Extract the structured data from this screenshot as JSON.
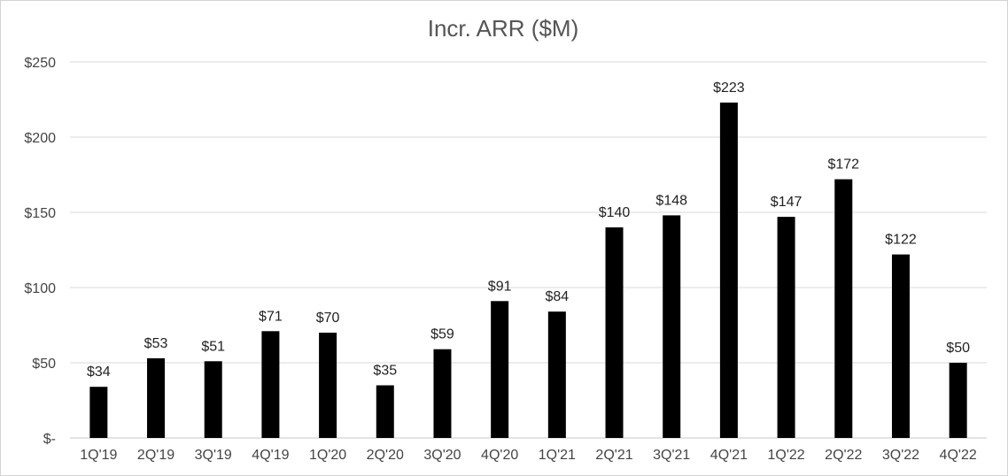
{
  "chart_data": {
    "type": "bar",
    "title": "Incr. ARR ($M)",
    "xlabel": "",
    "ylabel": "",
    "categories": [
      "1Q'19",
      "2Q'19",
      "3Q'19",
      "4Q'19",
      "1Q'20",
      "2Q'20",
      "3Q'20",
      "4Q'20",
      "1Q'21",
      "2Q'21",
      "3Q'21",
      "4Q'21",
      "1Q'22",
      "2Q'22",
      "3Q'22",
      "4Q'22"
    ],
    "values": [
      34,
      53,
      51,
      71,
      70,
      35,
      59,
      91,
      84,
      140,
      148,
      223,
      147,
      172,
      122,
      50
    ],
    "data_labels": [
      "$34",
      "$53",
      "$51",
      "$71",
      "$70",
      "$35",
      "$59",
      "$91",
      "$84",
      "$140",
      "$148",
      "$223",
      "$147",
      "$172",
      "$122",
      "$50"
    ],
    "ylim": [
      0,
      250
    ],
    "yticks": [
      0,
      50,
      100,
      150,
      200,
      250
    ],
    "ytick_labels": [
      "$-",
      "$50",
      "$100",
      "$150",
      "$200",
      "$250"
    ],
    "grid": true,
    "legend": "none",
    "bar_color": "#000000"
  }
}
